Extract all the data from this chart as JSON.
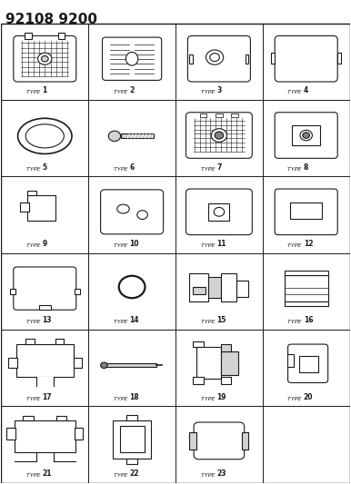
{
  "title": "92108 9200",
  "title_fontsize": 11,
  "bg_color": "#ffffff",
  "line_color": "#1a1a1a",
  "grid_rows": 6,
  "grid_cols": 4,
  "types": [
    1,
    2,
    3,
    4,
    5,
    6,
    7,
    8,
    9,
    10,
    11,
    12,
    13,
    14,
    15,
    16,
    17,
    18,
    19,
    20,
    21,
    22,
    23
  ],
  "label_prefix": "TYPE ",
  "label_bold_number": true
}
